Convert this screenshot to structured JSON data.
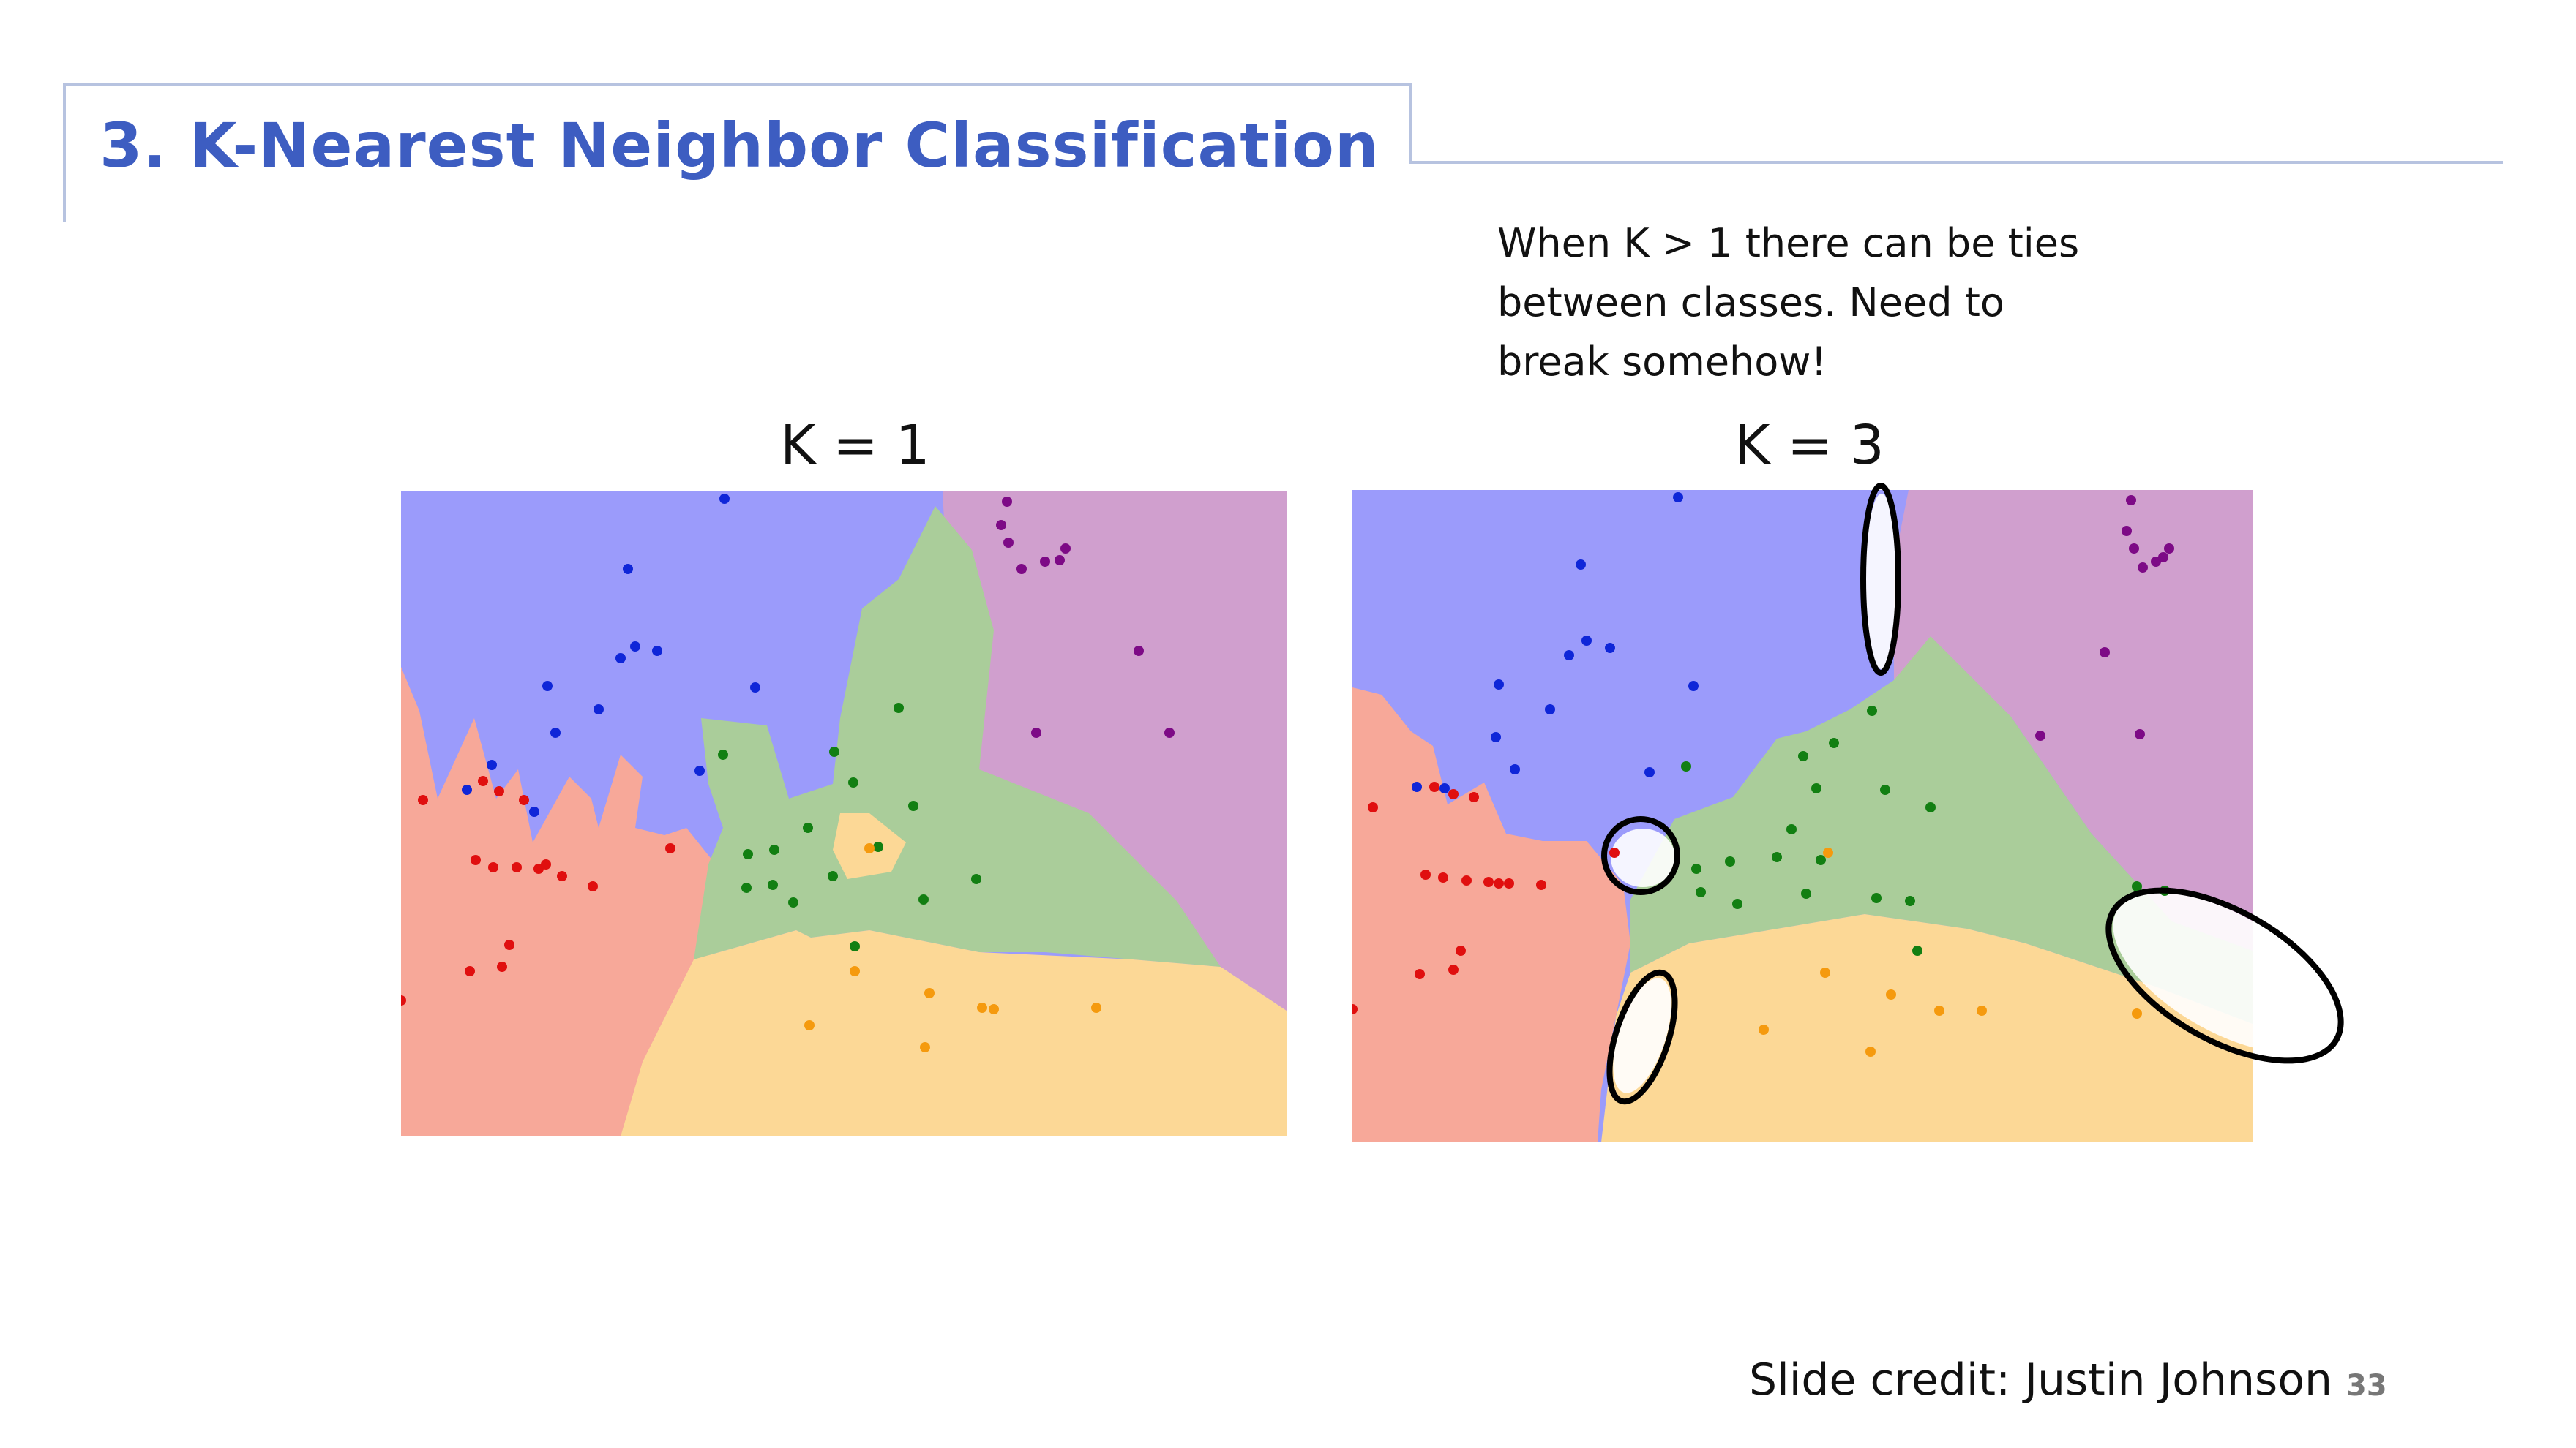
{
  "slide": {
    "title": "3. K-Nearest Neighbor Classification",
    "note_lines": [
      "When K > 1 there can be ties",
      "between classes. Need to",
      "break somehow!"
    ],
    "credit": "Slide credit: Justin Johnson",
    "page_number": "33"
  },
  "panels": [
    {
      "label": "K = 1"
    },
    {
      "label": "K = 3"
    }
  ],
  "colors": {
    "blue_region": "#9b9bfb",
    "purple_region": "#d09fce",
    "green_region": "#aacd9a",
    "red_region": "#f7a899",
    "orange_region": "#fcd896",
    "blue_point": "#0f26d8",
    "purple_point": "#7d0a86",
    "green_point": "#127f12",
    "red_point": "#e00f0f",
    "orange_point": "#f59a0e",
    "title": "#3d5dc1",
    "frame": "#b7c3e0"
  }
}
